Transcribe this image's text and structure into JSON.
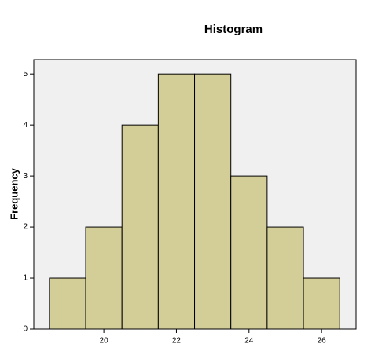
{
  "chart_data": {
    "type": "histogram",
    "title": "Histogram",
    "y_label": "Frequency",
    "bins": [
      18.5,
      19.5,
      20.5,
      21.5,
      22.5,
      23.5,
      24.5,
      25.5,
      26.5
    ],
    "counts": [
      1,
      2,
      4,
      5,
      5,
      3,
      2,
      1
    ],
    "color": "#d3ce97",
    "edge_color": "#000000",
    "background": "#f0f0f0",
    "xlim": [
      18.07,
      26.95
    ],
    "xticks": [
      20,
      22,
      24,
      26
    ],
    "ylim": [
      0,
      5.28
    ],
    "yticks": [
      0,
      1,
      2,
      3,
      4,
      5
    ],
    "grid": false
  }
}
